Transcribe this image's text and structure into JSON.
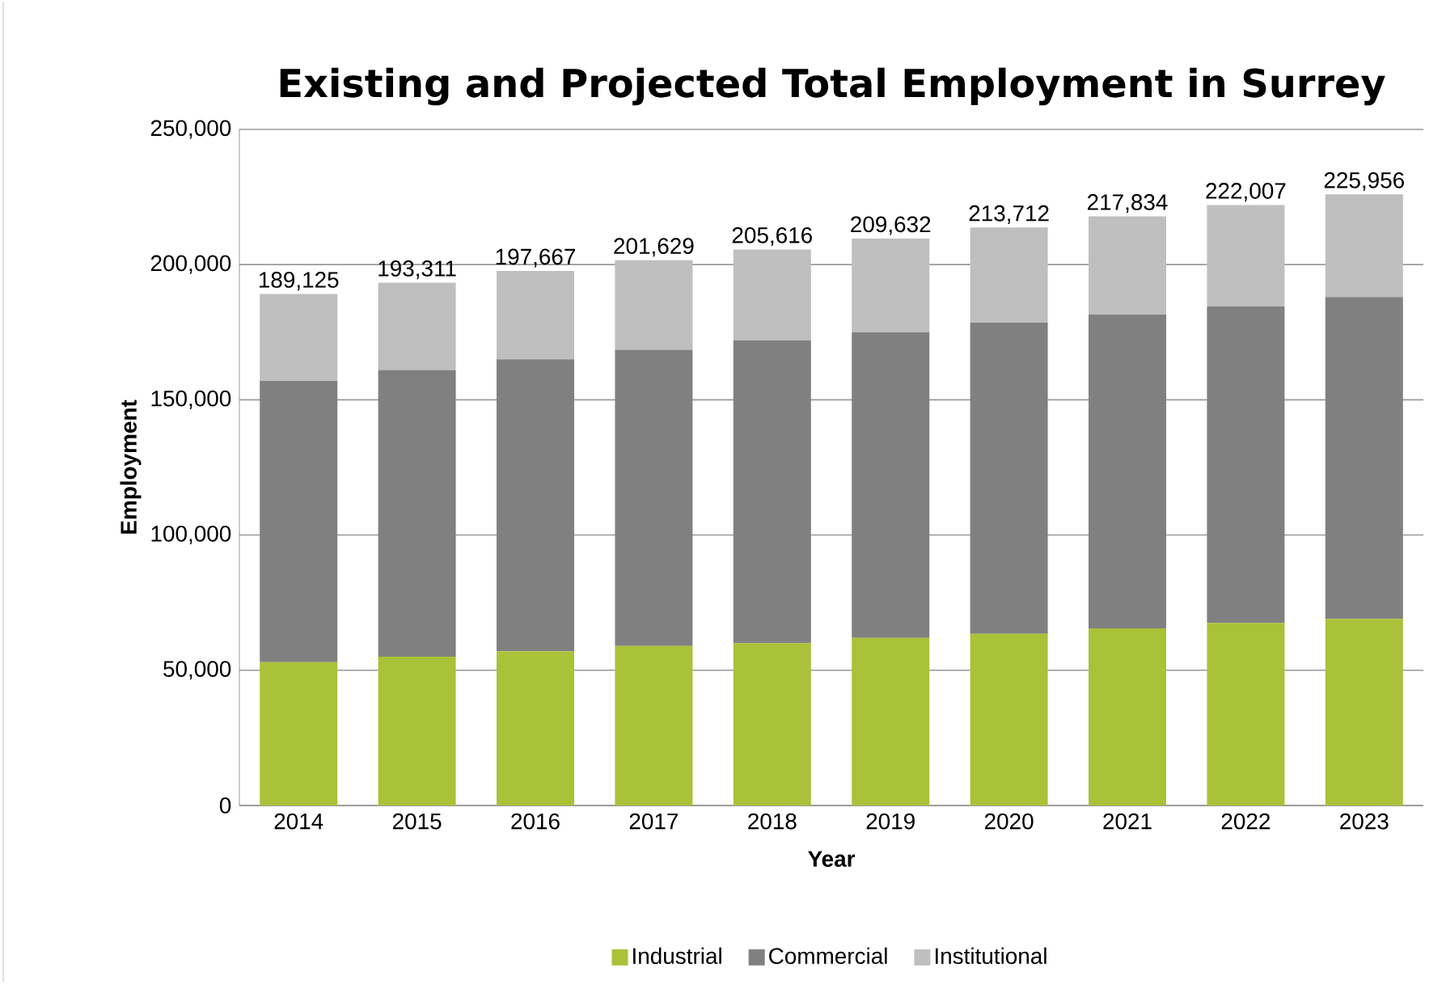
{
  "chart_data": {
    "type": "bar",
    "title": "Existing and Projected Total Employment in Surrey",
    "xlabel": "Year",
    "ylabel": "Employment",
    "stacked": true,
    "categories": [
      "2014",
      "2015",
      "2016",
      "2017",
      "2018",
      "2019",
      "2020",
      "2021",
      "2022",
      "2023"
    ],
    "series": [
      {
        "name": "Industrial",
        "color": "#a9c238",
        "values": [
          53000,
          55000,
          57000,
          59000,
          60000,
          62000,
          63500,
          65500,
          67500,
          69000
        ]
      },
      {
        "name": "Commercial",
        "color": "#808080",
        "values": [
          104000,
          106000,
          108000,
          109500,
          112000,
          113000,
          115000,
          116000,
          117000,
          119000
        ]
      },
      {
        "name": "Institutional",
        "color": "#bfbfbf",
        "values": [
          32125,
          32311,
          32667,
          33129,
          33616,
          34632,
          35212,
          36334,
          37507,
          37956
        ]
      }
    ],
    "totals": [
      "189,125",
      "193,311",
      "197,667",
      "201,629",
      "205,616",
      "209,632",
      "213,712",
      "217,834",
      "222,007",
      "225,956"
    ],
    "ylim": [
      0,
      250000
    ],
    "yticks": [
      {
        "value": 0,
        "label": "0"
      },
      {
        "value": 50000,
        "label": "50,000"
      },
      {
        "value": 100000,
        "label": "100,000"
      },
      {
        "value": 150000,
        "label": "150,000"
      },
      {
        "value": 200000,
        "label": "200,000"
      },
      {
        "value": 250000,
        "label": "250,000"
      }
    ],
    "grid": "y",
    "legend": "bottom"
  }
}
